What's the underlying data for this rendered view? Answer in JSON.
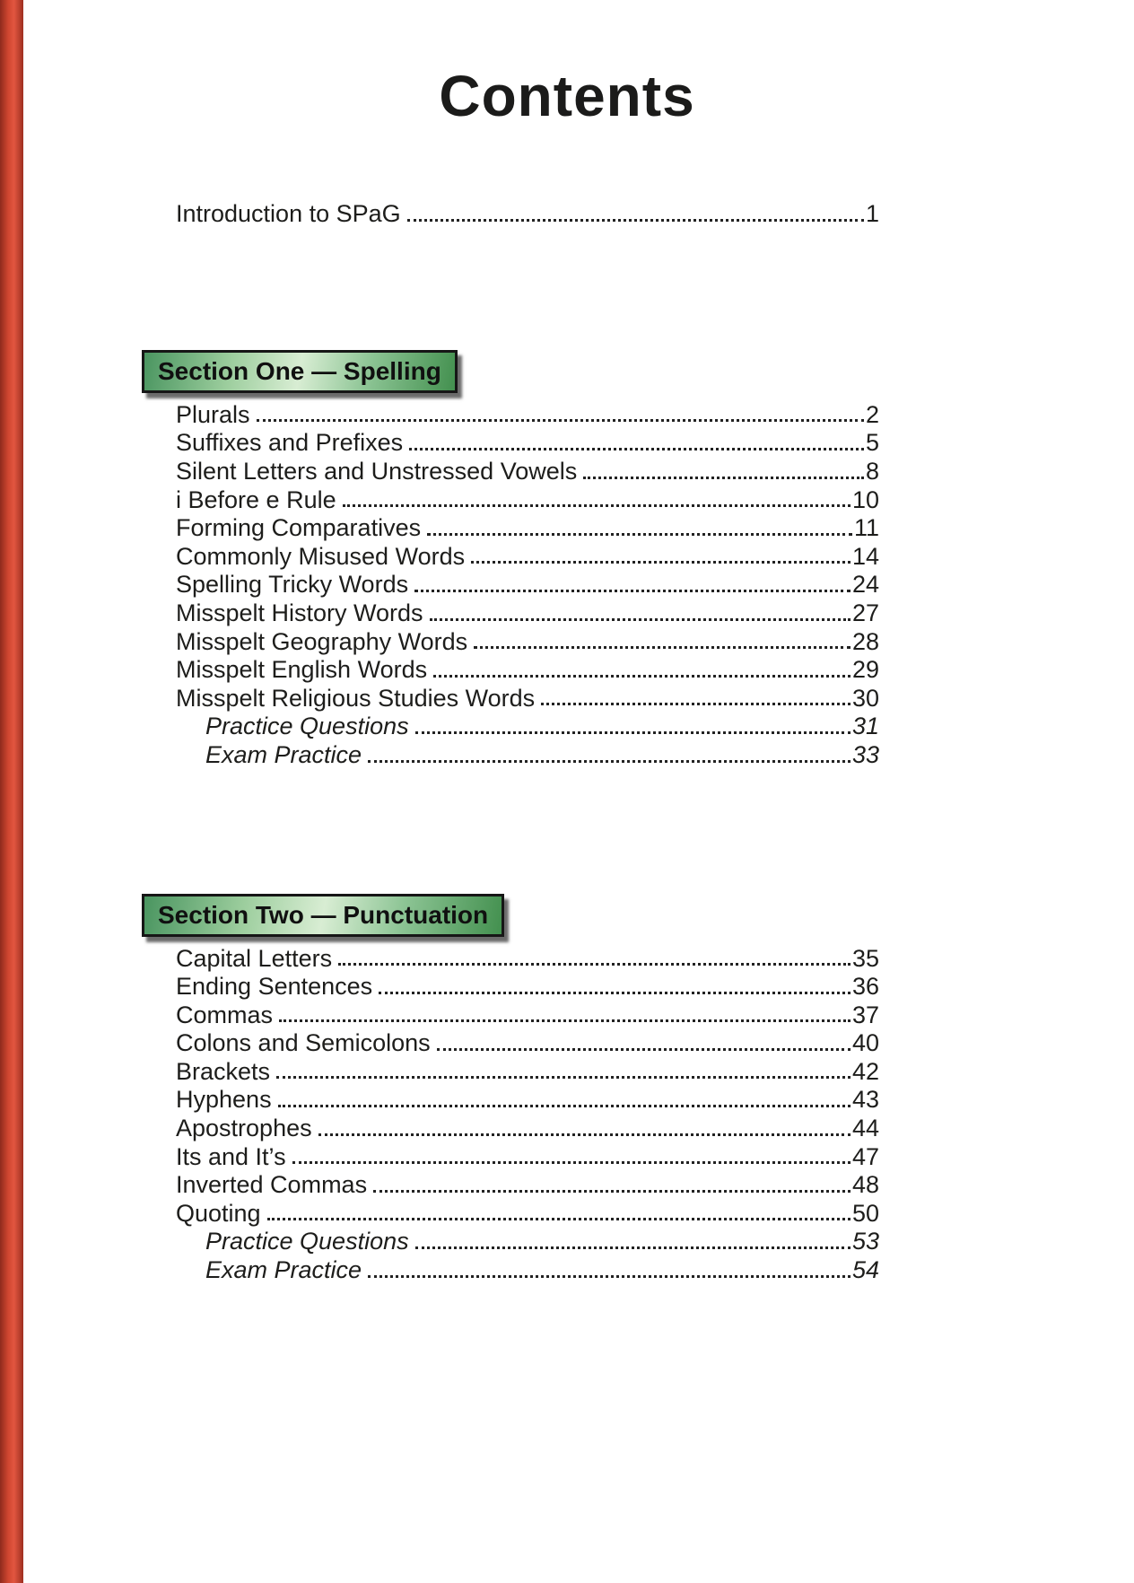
{
  "page": {
    "title": "Contents",
    "intro": {
      "label": "Introduction to SPaG",
      "page": "1"
    },
    "sections": [
      {
        "heading": "Section One — Spelling",
        "entries": [
          {
            "label": "Plurals",
            "page": "2",
            "italic": false
          },
          {
            "label": "Suffixes and Prefixes",
            "page": "5",
            "italic": false
          },
          {
            "label": "Silent Letters and Unstressed Vowels",
            "page": "8",
            "italic": false
          },
          {
            "label": "i Before e Rule",
            "page": "10",
            "italic": false
          },
          {
            "label": "Forming Comparatives",
            "page": "11",
            "italic": false
          },
          {
            "label": "Commonly Misused Words",
            "page": "14",
            "italic": false
          },
          {
            "label": "Spelling Tricky Words",
            "page": "24",
            "italic": false
          },
          {
            "label": "Misspelt History Words",
            "page": "27",
            "italic": false
          },
          {
            "label": "Misspelt Geography Words",
            "page": "28",
            "italic": false
          },
          {
            "label": "Misspelt English Words",
            "page": "29",
            "italic": false
          },
          {
            "label": "Misspelt Religious Studies Words",
            "page": "30",
            "italic": false
          },
          {
            "label": "Practice Questions",
            "page": "31",
            "italic": true
          },
          {
            "label": "Exam Practice",
            "page": "33",
            "italic": true
          }
        ]
      },
      {
        "heading": "Section Two — Punctuation",
        "entries": [
          {
            "label": "Capital Letters",
            "page": "35",
            "italic": false
          },
          {
            "label": "Ending Sentences",
            "page": "36",
            "italic": false
          },
          {
            "label": "Commas",
            "page": "37",
            "italic": false
          },
          {
            "label": "Colons and Semicolons",
            "page": "40",
            "italic": false
          },
          {
            "label": "Brackets",
            "page": "42",
            "italic": false
          },
          {
            "label": "Hyphens",
            "page": "43",
            "italic": false
          },
          {
            "label": "Apostrophes",
            "page": "44",
            "italic": false
          },
          {
            "label": "Its and It’s",
            "page": "47",
            "italic": false
          },
          {
            "label": "Inverted Commas",
            "page": "48",
            "italic": false
          },
          {
            "label": "Quoting",
            "page": "50",
            "italic": false
          },
          {
            "label": "Practice Questions",
            "page": "53",
            "italic": true
          },
          {
            "label": "Exam Practice",
            "page": "54",
            "italic": true
          }
        ]
      }
    ],
    "colors": {
      "page_edge_red": "#c8422c",
      "section_green_dark": "#4a9560",
      "section_green_light": "#d8edd3",
      "text_black": "#1d1d1b"
    }
  }
}
